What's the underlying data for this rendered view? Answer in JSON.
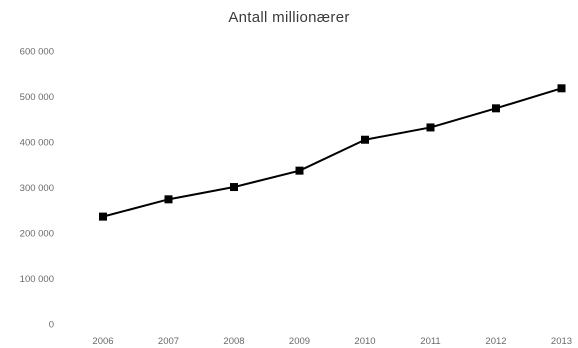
{
  "chart_data": {
    "type": "line",
    "title": "Antall millionærer",
    "xlabel": "",
    "ylabel": "",
    "x": [
      "2006",
      "2007",
      "2008",
      "2009",
      "2010",
      "2011",
      "2012",
      "2013"
    ],
    "series": [
      {
        "values": [
          236000,
          274000,
          301000,
          337000,
          405000,
          432000,
          474000,
          518000
        ],
        "color": "#000000",
        "marker": "square"
      }
    ],
    "yticks": [
      0,
      100000,
      200000,
      300000,
      400000,
      500000,
      600000
    ],
    "ytick_labels": [
      "0",
      "100 000",
      "200 000",
      "300 000",
      "400 000",
      "500 000",
      "600 000"
    ],
    "ylim": [
      0,
      600000
    ],
    "grid": false,
    "legend": "none"
  }
}
